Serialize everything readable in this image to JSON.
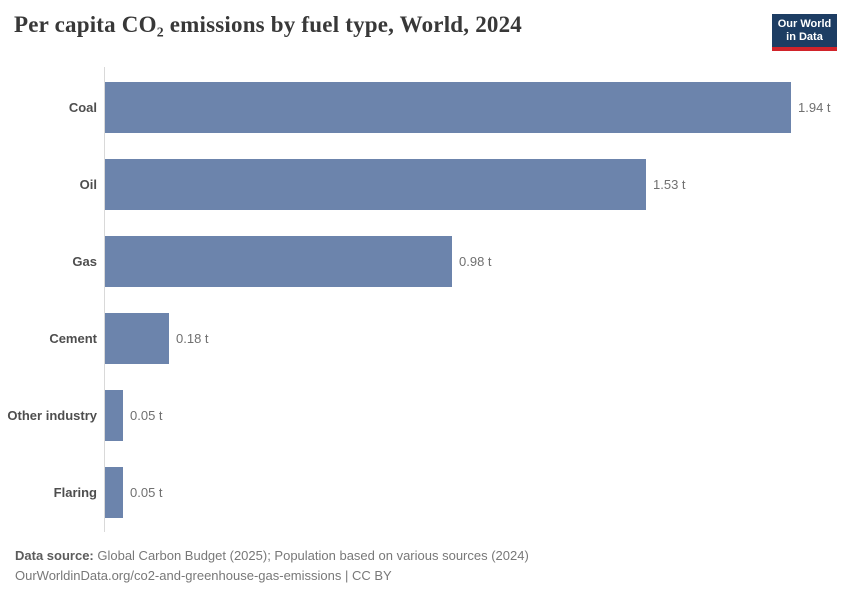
{
  "header": {
    "title": "Per capita CO₂ emissions by fuel type, World, 2024",
    "logo": {
      "line1": "Our World",
      "line2": "in Data"
    }
  },
  "chart_data": {
    "type": "bar",
    "orientation": "horizontal",
    "title": "Per capita CO₂ emissions by fuel type, World, 2024",
    "categories": [
      "Coal",
      "Oil",
      "Gas",
      "Cement",
      "Other industry",
      "Flaring"
    ],
    "values": [
      1.94,
      1.53,
      0.98,
      0.18,
      0.05,
      0.05
    ],
    "value_labels": [
      "1.94 t",
      "1.53 t",
      "0.98 t",
      "0.18 t",
      "0.05 t",
      "0.05 t"
    ],
    "unit": "t",
    "xlim": [
      0,
      1.94
    ],
    "grid": false,
    "legend": "none",
    "bar_color": "#6c84ac"
  },
  "footer": {
    "source_label": "Data source:",
    "source_text": " Global Carbon Budget (2025); Population based on various sources (2024)",
    "link_text": "OurWorldinData.org/co2-and-greenhouse-gas-emissions | CC BY"
  },
  "colors": {
    "bar": "#6c84ac",
    "axis_line": "#d9d9d9",
    "title_text": "#383838",
    "category_label": "#4e4e4e",
    "value_label": "#707070",
    "footer_text": "#787878",
    "logo_background": "#1d3d63",
    "logo_underline": "#d1232a"
  }
}
